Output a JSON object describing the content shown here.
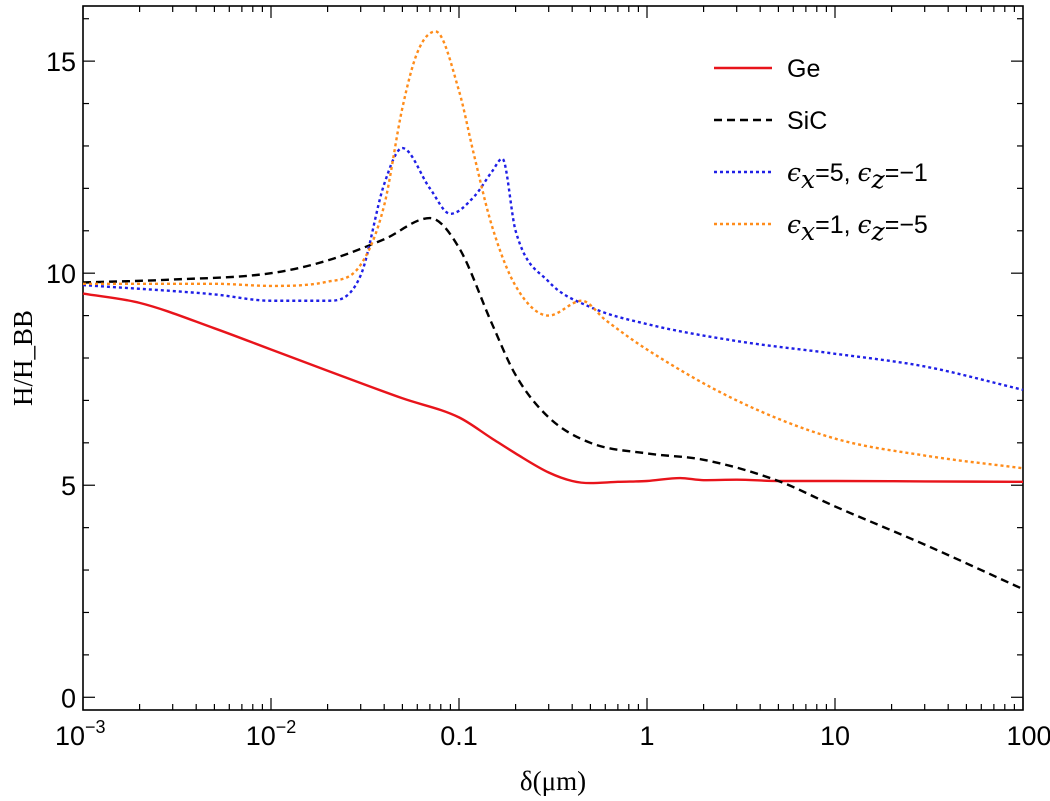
{
  "chart_data": {
    "type": "line",
    "xscale": "log",
    "xlim": [
      0.001,
      100
    ],
    "ylim": [
      -0.3,
      16.3
    ],
    "xlabel": "δ(μm)",
    "ylabel": "H/H_BB",
    "xticks": [
      {
        "value": 0.001,
        "base": "10",
        "exp": "−3"
      },
      {
        "value": 0.01,
        "base": "10",
        "exp": "−2"
      },
      {
        "value": 0.1,
        "label": "0.1"
      },
      {
        "value": 1,
        "label": "1"
      },
      {
        "value": 10,
        "label": "10"
      },
      {
        "value": 100,
        "label": "100"
      }
    ],
    "yticks": [
      0,
      5,
      10,
      15
    ],
    "yticklabels": [
      "0",
      "5",
      "10",
      "15"
    ],
    "legend_position": "top-right",
    "series": [
      {
        "name": "Ge",
        "label": "Ge",
        "color": "#e8141b",
        "dash": "solid",
        "points": [
          [
            0.001,
            9.52
          ],
          [
            0.002,
            9.3
          ],
          [
            0.005,
            8.7
          ],
          [
            0.01,
            8.2
          ],
          [
            0.02,
            7.7
          ],
          [
            0.05,
            7.05
          ],
          [
            0.1,
            6.6
          ],
          [
            0.15,
            6.1
          ],
          [
            0.2,
            5.75
          ],
          [
            0.3,
            5.3
          ],
          [
            0.4,
            5.1
          ],
          [
            0.5,
            5.05
          ],
          [
            0.7,
            5.08
          ],
          [
            1,
            5.1
          ],
          [
            1.5,
            5.17
          ],
          [
            2,
            5.12
          ],
          [
            3,
            5.13
          ],
          [
            5,
            5.1
          ],
          [
            10,
            5.1
          ],
          [
            30,
            5.09
          ],
          [
            100,
            5.08
          ]
        ]
      },
      {
        "name": "SiC",
        "label": "SiC",
        "color": "#000000",
        "dash": "dashed",
        "points": [
          [
            0.001,
            9.78
          ],
          [
            0.003,
            9.85
          ],
          [
            0.01,
            10.0
          ],
          [
            0.02,
            10.3
          ],
          [
            0.04,
            10.8
          ],
          [
            0.07,
            11.3
          ],
          [
            0.1,
            10.6
          ],
          [
            0.15,
            8.8
          ],
          [
            0.2,
            7.6
          ],
          [
            0.3,
            6.6
          ],
          [
            0.5,
            6.0
          ],
          [
            1,
            5.75
          ],
          [
            2,
            5.6
          ],
          [
            5,
            5.1
          ],
          [
            10,
            4.5
          ],
          [
            30,
            3.6
          ],
          [
            100,
            2.55
          ]
        ]
      },
      {
        "name": "eps_x5_eps_z-1",
        "label": "ϵx=5, ϵz=−1",
        "label_parts": [
          "ϵ",
          "x",
          "=5, ",
          "ϵ",
          "z",
          "=−1"
        ],
        "color": "#1f1fe6",
        "dash": "dotted",
        "points": [
          [
            0.001,
            9.72
          ],
          [
            0.005,
            9.5
          ],
          [
            0.01,
            9.35
          ],
          [
            0.02,
            9.35
          ],
          [
            0.03,
            9.95
          ],
          [
            0.04,
            12.1
          ],
          [
            0.05,
            12.95
          ],
          [
            0.07,
            12.0
          ],
          [
            0.09,
            11.4
          ],
          [
            0.12,
            11.8
          ],
          [
            0.15,
            12.4
          ],
          [
            0.17,
            12.7
          ],
          [
            0.2,
            11.0
          ],
          [
            0.3,
            9.8
          ],
          [
            0.5,
            9.2
          ],
          [
            1,
            8.8
          ],
          [
            3,
            8.4
          ],
          [
            10,
            8.1
          ],
          [
            30,
            7.8
          ],
          [
            100,
            7.25
          ]
        ]
      },
      {
        "name": "eps_x1_eps_z-5",
        "label": "ϵx=1, ϵz=−5",
        "label_parts": [
          "ϵ",
          "x",
          "=1, ",
          "ϵ",
          "z",
          "=−5"
        ],
        "color": "#ff8c1a",
        "dash": "dotted",
        "points": [
          [
            0.001,
            9.75
          ],
          [
            0.005,
            9.75
          ],
          [
            0.01,
            9.7
          ],
          [
            0.02,
            9.8
          ],
          [
            0.03,
            10.2
          ],
          [
            0.04,
            11.6
          ],
          [
            0.05,
            13.9
          ],
          [
            0.06,
            15.2
          ],
          [
            0.075,
            15.7
          ],
          [
            0.1,
            14.3
          ],
          [
            0.12,
            12.8
          ],
          [
            0.15,
            11.1
          ],
          [
            0.2,
            9.7
          ],
          [
            0.3,
            9.0
          ],
          [
            0.45,
            9.35
          ],
          [
            0.6,
            8.9
          ],
          [
            1,
            8.2
          ],
          [
            3,
            7.0
          ],
          [
            10,
            6.1
          ],
          [
            30,
            5.7
          ],
          [
            100,
            5.4
          ]
        ]
      }
    ]
  }
}
